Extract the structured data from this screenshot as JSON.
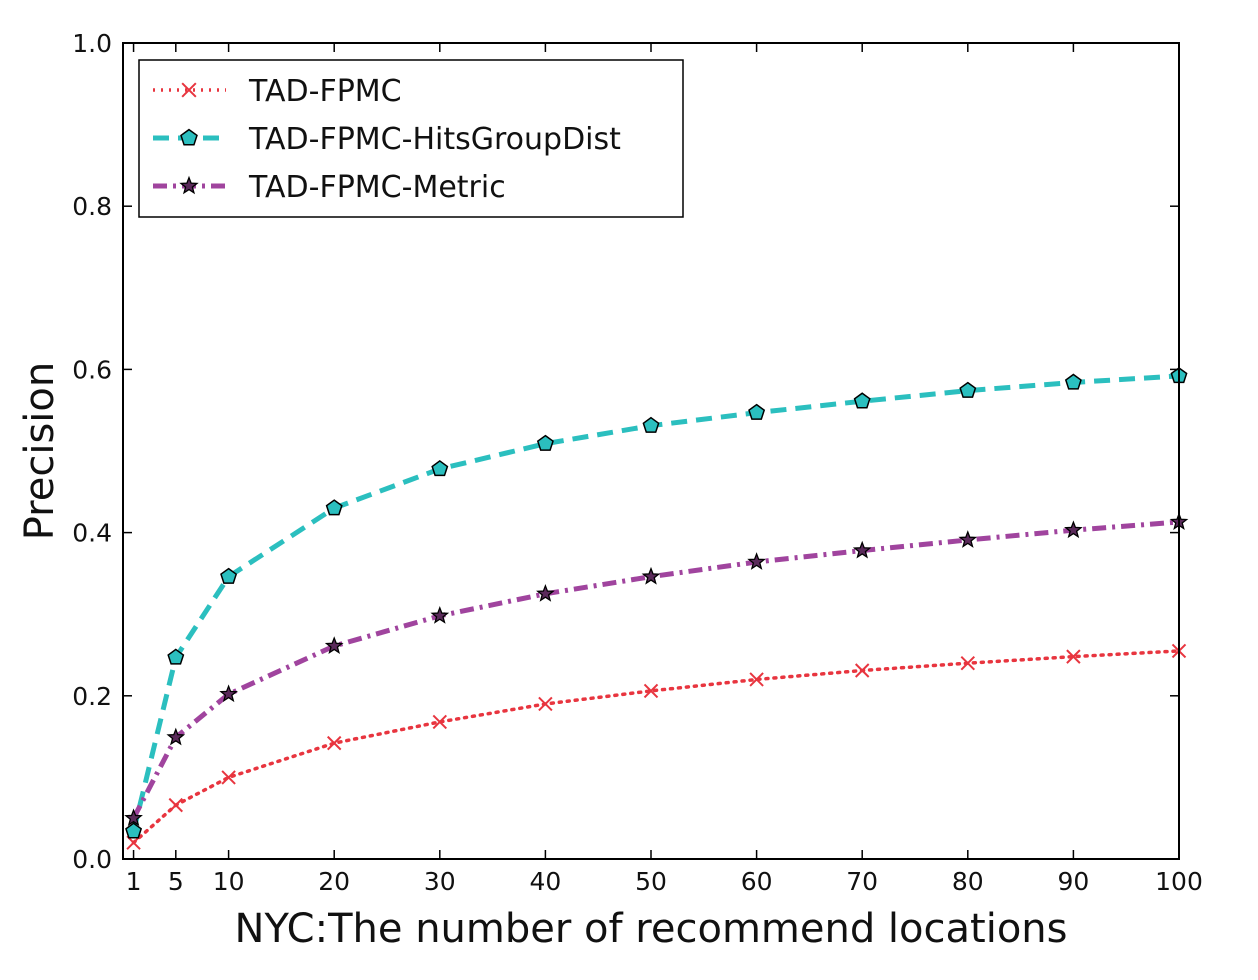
{
  "chart_data": {
    "type": "line",
    "xlabel": "NYC:The number of recommend locations",
    "ylabel": "Precision",
    "x": [
      1,
      5,
      10,
      20,
      30,
      40,
      50,
      60,
      70,
      80,
      90,
      100
    ],
    "xticks": [
      "1",
      "5",
      "10",
      "20",
      "30",
      "40",
      "50",
      "60",
      "70",
      "80",
      "90",
      "100"
    ],
    "yticks": [
      "0.0",
      "0.2",
      "0.4",
      "0.6",
      "0.8",
      "1.0"
    ],
    "xlim": [
      0,
      100
    ],
    "ylim": [
      0,
      1.0
    ],
    "grid": false,
    "legend_position": "top-left",
    "series": [
      {
        "name": "TAD-FPMC",
        "color": "#e8353f",
        "line_style": "dotted",
        "marker": "x",
        "values": [
          0.02,
          0.066,
          0.1,
          0.142,
          0.168,
          0.19,
          0.206,
          0.22,
          0.231,
          0.24,
          0.248,
          0.255
        ]
      },
      {
        "name": "TAD-FPMC-HitsGroupDist",
        "color": "#2bbfbf",
        "line_style": "dashed",
        "marker": "pentagon",
        "values": [
          0.034,
          0.247,
          0.346,
          0.43,
          0.478,
          0.509,
          0.531,
          0.547,
          0.561,
          0.574,
          0.584,
          0.592
        ]
      },
      {
        "name": "TAD-FPMC-Metric",
        "color": "#a0449e",
        "line_style": "dashdot",
        "marker": "star",
        "values": [
          0.05,
          0.149,
          0.202,
          0.261,
          0.298,
          0.325,
          0.346,
          0.364,
          0.378,
          0.391,
          0.403,
          0.413
        ]
      }
    ]
  }
}
